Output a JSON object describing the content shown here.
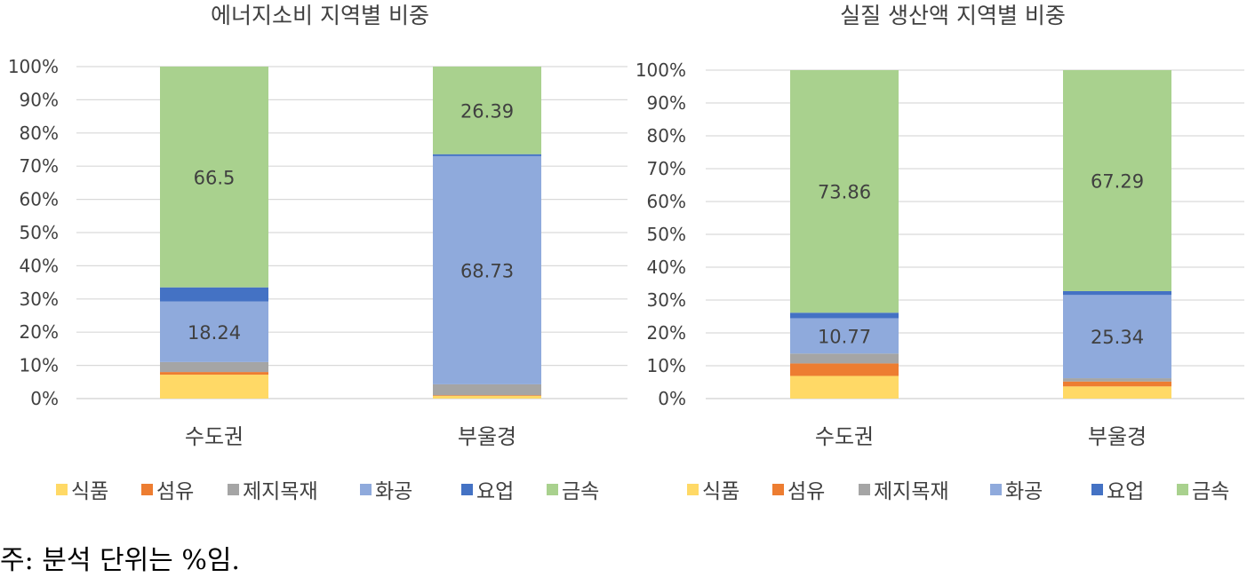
{
  "legend": [
    {
      "name": "식품",
      "color": "#FFD966"
    },
    {
      "name": "섬유",
      "color": "#ED7D31"
    },
    {
      "name": "제지목재",
      "color": "#A5A5A5"
    },
    {
      "name": "화공",
      "color": "#8FAADC"
    },
    {
      "name": "요업",
      "color": "#4472C4"
    },
    {
      "name": "금속",
      "color": "#A9D18E"
    }
  ],
  "footnote": "주: 분석 단위는 %임.",
  "chart_data": [
    {
      "type": "bar",
      "stacked": "percent",
      "title": "에너지소비 지역별 비중",
      "categories": [
        "수도권",
        "부울경"
      ],
      "ylim": [
        0,
        100
      ],
      "yticks": [
        "0%",
        "10%",
        "20%",
        "30%",
        "40%",
        "50%",
        "60%",
        "70%",
        "80%",
        "90%",
        "100%"
      ],
      "grid": true,
      "legend_position": "bottom",
      "series": [
        {
          "name": "식품",
          "values": [
            7.2,
            0.8
          ]
        },
        {
          "name": "섬유",
          "values": [
            0.8,
            0.2
          ]
        },
        {
          "name": "제지목재",
          "values": [
            3.0,
            3.3
          ]
        },
        {
          "name": "화공",
          "values": [
            18.24,
            68.73
          ]
        },
        {
          "name": "요업",
          "values": [
            4.26,
            0.58
          ]
        },
        {
          "name": "금속",
          "values": [
            66.5,
            26.39
          ]
        }
      ],
      "data_labels": [
        {
          "series": "화공",
          "category": "수도권",
          "text": "18.24"
        },
        {
          "series": "금속",
          "category": "수도권",
          "text": "66.5"
        },
        {
          "series": "화공",
          "category": "부울경",
          "text": "68.73"
        },
        {
          "series": "금속",
          "category": "부울경",
          "text": "26.39"
        }
      ]
    },
    {
      "type": "bar",
      "stacked": "percent",
      "title": "실질 생산액 지역별 비중",
      "categories": [
        "수도권",
        "부울경"
      ],
      "ylim": [
        0,
        100
      ],
      "yticks": [
        "0%",
        "10%",
        "20%",
        "30%",
        "40%",
        "50%",
        "60%",
        "70%",
        "80%",
        "90%",
        "100%"
      ],
      "grid": true,
      "legend_position": "bottom",
      "series": [
        {
          "name": "식품",
          "values": [
            6.9,
            3.7
          ]
        },
        {
          "name": "섬유",
          "values": [
            3.8,
            1.5
          ]
        },
        {
          "name": "제지목재",
          "values": [
            3.0,
            1.0
          ]
        },
        {
          "name": "화공",
          "values": [
            10.77,
            25.34
          ]
        },
        {
          "name": "요업",
          "values": [
            1.67,
            1.17
          ]
        },
        {
          "name": "금속",
          "values": [
            73.86,
            67.29
          ]
        }
      ],
      "data_labels": [
        {
          "series": "화공",
          "category": "수도권",
          "text": "10.77"
        },
        {
          "series": "금속",
          "category": "수도권",
          "text": "73.86"
        },
        {
          "series": "화공",
          "category": "부울경",
          "text": "25.34"
        },
        {
          "series": "금속",
          "category": "부울경",
          "text": "67.29"
        }
      ]
    }
  ]
}
